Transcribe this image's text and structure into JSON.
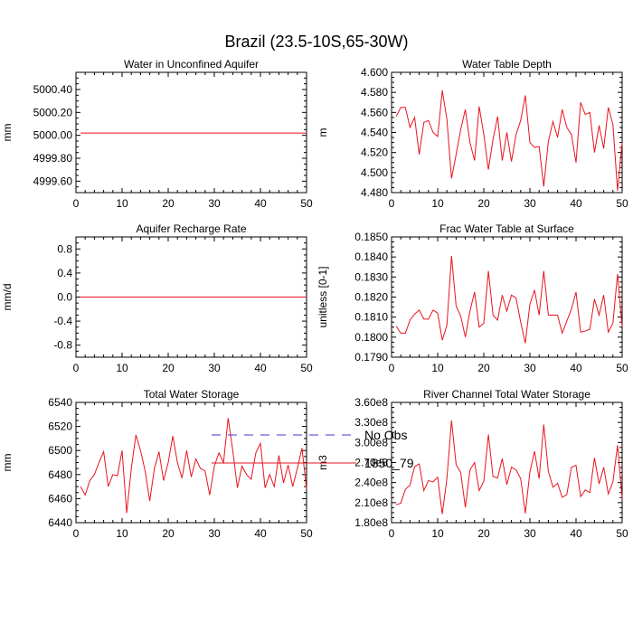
{
  "figure_title": "Brazil (23.5-10S,65-30W)",
  "legend": {
    "entries": [
      {
        "label": "No Obs",
        "color": "#3b3bd6",
        "style": "dashed"
      },
      {
        "label": "1850_79",
        "color": "#e8141e",
        "style": "solid"
      }
    ]
  },
  "chart_data": [
    {
      "type": "line",
      "title": "Water in Unconfined Aquifer",
      "ylabel": "mm",
      "xlabel": "",
      "xlim": [
        0,
        50
      ],
      "ylim": [
        4999.5,
        5000.55
      ],
      "xticks": [
        0,
        10,
        20,
        30,
        40,
        50
      ],
      "xtick_labels": [
        "0",
        "10",
        "20",
        "30",
        "40",
        "50"
      ],
      "yticks": [
        4999.6,
        4999.8,
        5000.0,
        5000.2,
        5000.4
      ],
      "ytick_labels": [
        "4999.60",
        "4999.80",
        "5000.00",
        "5000.20",
        "5000.40"
      ],
      "series": [
        {
          "name": "1850_79",
          "color": "#e8141e",
          "x": [
            1,
            2,
            3,
            4,
            5,
            6,
            7,
            8,
            9,
            10,
            11,
            12,
            13,
            14,
            15,
            16,
            17,
            18,
            19,
            20,
            21,
            22,
            23,
            24,
            25,
            26,
            27,
            28,
            29,
            30,
            31,
            32,
            33,
            34,
            35,
            36,
            37,
            38,
            39,
            40,
            41,
            42,
            43,
            44,
            45,
            46,
            47,
            48,
            49,
            50
          ],
          "values": [
            5000.02,
            5000.02,
            5000.02,
            5000.02,
            5000.02,
            5000.02,
            5000.02,
            5000.02,
            5000.02,
            5000.02,
            5000.02,
            5000.02,
            5000.02,
            5000.02,
            5000.02,
            5000.02,
            5000.02,
            5000.02,
            5000.02,
            5000.02,
            5000.02,
            5000.02,
            5000.02,
            5000.02,
            5000.02,
            5000.02,
            5000.02,
            5000.02,
            5000.02,
            5000.02,
            5000.02,
            5000.02,
            5000.02,
            5000.02,
            5000.02,
            5000.02,
            5000.02,
            5000.02,
            5000.02,
            5000.02,
            5000.02,
            5000.02,
            5000.02,
            5000.02,
            5000.02,
            5000.02,
            5000.02,
            5000.02,
            5000.02,
            5000.02
          ]
        }
      ]
    },
    {
      "type": "line",
      "title": "Water Table Depth",
      "ylabel": "m",
      "xlabel": "",
      "xlim": [
        0,
        50
      ],
      "ylim": [
        4.48,
        4.6
      ],
      "xticks": [
        0,
        10,
        20,
        30,
        40,
        50
      ],
      "xtick_labels": [
        "0",
        "10",
        "20",
        "30",
        "40",
        "50"
      ],
      "yticks": [
        4.48,
        4.5,
        4.52,
        4.54,
        4.56,
        4.58,
        4.6
      ],
      "ytick_labels": [
        "4.480",
        "4.500",
        "4.520",
        "4.540",
        "4.560",
        "4.580",
        "4.600"
      ],
      "series": [
        {
          "name": "1850_79",
          "color": "#e8141e",
          "x": [
            1,
            2,
            3,
            4,
            5,
            6,
            7,
            8,
            9,
            10,
            11,
            12,
            13,
            14,
            15,
            16,
            17,
            18,
            19,
            20,
            21,
            22,
            23,
            24,
            25,
            26,
            27,
            28,
            29,
            30,
            31,
            32,
            33,
            34,
            35,
            36,
            37,
            38,
            39,
            40,
            41,
            42,
            43,
            44,
            45,
            46,
            47,
            48,
            49,
            50
          ],
          "values": [
            4.556,
            4.565,
            4.565,
            4.545,
            4.555,
            4.518,
            4.55,
            4.552,
            4.54,
            4.536,
            4.582,
            4.553,
            4.494,
            4.518,
            4.543,
            4.563,
            4.53,
            4.512,
            4.566,
            4.538,
            4.503,
            4.533,
            4.556,
            4.512,
            4.54,
            4.511,
            4.538,
            4.552,
            4.577,
            4.53,
            4.525,
            4.526,
            4.486,
            4.531,
            4.551,
            4.535,
            4.563,
            4.545,
            4.538,
            4.51,
            4.57,
            4.558,
            4.56,
            4.52,
            4.547,
            4.524,
            4.565,
            4.548,
            4.482,
            4.53
          ]
        }
      ]
    },
    {
      "type": "line",
      "title": "Aquifer Recharge Rate",
      "ylabel": "mm/d",
      "xlabel": "",
      "xlim": [
        0,
        50
      ],
      "ylim": [
        -1.0,
        1.0
      ],
      "xticks": [
        0,
        10,
        20,
        30,
        40,
        50
      ],
      "xtick_labels": [
        "0",
        "10",
        "20",
        "30",
        "40",
        "50"
      ],
      "yticks": [
        -0.8,
        -0.4,
        0.0,
        0.4,
        0.8
      ],
      "ytick_labels": [
        "-0.8",
        "-0.4",
        "0.0",
        "0.4",
        "0.8"
      ],
      "series": [
        {
          "name": "1850_79",
          "color": "#e8141e",
          "x": [
            1,
            2,
            3,
            4,
            5,
            6,
            7,
            8,
            9,
            10,
            11,
            12,
            13,
            14,
            15,
            16,
            17,
            18,
            19,
            20,
            21,
            22,
            23,
            24,
            25,
            26,
            27,
            28,
            29,
            30,
            31,
            32,
            33,
            34,
            35,
            36,
            37,
            38,
            39,
            40,
            41,
            42,
            43,
            44,
            45,
            46,
            47,
            48,
            49,
            50
          ],
          "values": [
            0,
            0,
            0,
            0,
            0,
            0,
            0,
            0,
            0,
            0,
            0,
            0,
            0,
            0,
            0,
            0,
            0,
            0,
            0,
            0,
            0,
            0,
            0,
            0,
            0,
            0,
            0,
            0,
            0,
            0,
            0,
            0,
            0,
            0,
            0,
            0,
            0,
            0,
            0,
            0,
            0,
            0,
            0,
            0,
            0,
            0,
            0,
            0,
            0,
            0
          ]
        }
      ]
    },
    {
      "type": "line",
      "title": "Frac Water Table at Surface",
      "ylabel": "unitless [0-1]",
      "xlabel": "",
      "xlim": [
        0,
        50
      ],
      "ylim": [
        0.179,
        0.185
      ],
      "xticks": [
        0,
        10,
        20,
        30,
        40,
        50
      ],
      "xtick_labels": [
        "0",
        "10",
        "20",
        "30",
        "40",
        "50"
      ],
      "yticks": [
        0.179,
        0.18,
        0.181,
        0.182,
        0.183,
        0.184,
        0.185
      ],
      "ytick_labels": [
        "0.1790",
        "0.1800",
        "0.1810",
        "0.1820",
        "0.1830",
        "0.1840",
        "0.1850"
      ],
      "series": [
        {
          "name": "1850_79",
          "color": "#e8141e",
          "x": [
            1,
            2,
            3,
            4,
            5,
            6,
            7,
            8,
            9,
            10,
            11,
            12,
            13,
            14,
            15,
            16,
            17,
            18,
            19,
            20,
            21,
            22,
            23,
            24,
            25,
            26,
            27,
            28,
            29,
            30,
            31,
            32,
            33,
            34,
            35,
            36,
            37,
            38,
            39,
            40,
            41,
            42,
            43,
            44,
            45,
            46,
            47,
            48,
            49,
            50
          ],
          "values": [
            0.18055,
            0.1802,
            0.1802,
            0.18085,
            0.18115,
            0.18135,
            0.1809,
            0.1809,
            0.18135,
            0.1812,
            0.17985,
            0.1806,
            0.18405,
            0.18155,
            0.18105,
            0.18,
            0.1813,
            0.18225,
            0.1805,
            0.1807,
            0.1833,
            0.1811,
            0.18085,
            0.1821,
            0.1813,
            0.1821,
            0.18195,
            0.18075,
            0.1797,
            0.18165,
            0.18235,
            0.1811,
            0.1833,
            0.1811,
            0.1811,
            0.1811,
            0.1802,
            0.1808,
            0.1814,
            0.18225,
            0.18025,
            0.1803,
            0.1804,
            0.1819,
            0.1811,
            0.1821,
            0.18025,
            0.1807,
            0.18315,
            0.1805
          ]
        }
      ]
    },
    {
      "type": "line",
      "title": "Total Water Storage",
      "ylabel": "mm",
      "xlabel": "",
      "xlim": [
        0,
        50
      ],
      "ylim": [
        6440,
        6540
      ],
      "xticks": [
        0,
        10,
        20,
        30,
        40,
        50
      ],
      "xtick_labels": [
        "0",
        "10",
        "20",
        "30",
        "40",
        "50"
      ],
      "yticks": [
        6440,
        6460,
        6480,
        6500,
        6520,
        6540
      ],
      "ytick_labels": [
        "6440",
        "6460",
        "6480",
        "6500",
        "6520",
        "6540"
      ],
      "series": [
        {
          "name": "1850_79",
          "color": "#e8141e",
          "x": [
            1,
            2,
            3,
            4,
            5,
            6,
            7,
            8,
            9,
            10,
            11,
            12,
            13,
            14,
            15,
            16,
            17,
            18,
            19,
            20,
            21,
            22,
            23,
            24,
            25,
            26,
            27,
            28,
            29,
            30,
            31,
            32,
            33,
            34,
            35,
            36,
            37,
            38,
            39,
            40,
            41,
            42,
            43,
            44,
            45,
            46,
            47,
            48,
            49,
            50
          ],
          "values": [
            6470,
            6463,
            6475,
            6480,
            6490,
            6499,
            6470,
            6480,
            6479,
            6500,
            6448,
            6485,
            6513,
            6500,
            6483,
            6458,
            6485,
            6499,
            6475,
            6490,
            6512,
            6490,
            6477,
            6500,
            6478,
            6493,
            6485,
            6483,
            6463,
            6487,
            6498,
            6490,
            6527,
            6500,
            6469,
            6487,
            6480,
            6476,
            6498,
            6506,
            6469,
            6480,
            6470,
            6496,
            6473,
            6488,
            6470,
            6485,
            6502,
            6468
          ]
        }
      ]
    },
    {
      "type": "line",
      "title": "River Channel Total Water Storage",
      "ylabel": "m3",
      "xlabel": "",
      "xlim": [
        0,
        50
      ],
      "ylim": [
        180000000,
        360000000
      ],
      "xticks": [
        0,
        10,
        20,
        30,
        40,
        50
      ],
      "xtick_labels": [
        "0",
        "10",
        "20",
        "30",
        "40",
        "50"
      ],
      "yticks": [
        180000000,
        210000000,
        240000000,
        270000000,
        300000000,
        330000000,
        360000000
      ],
      "ytick_labels": [
        "1.80e8",
        "2.10e8",
        "2.40e8",
        "2.70e8",
        "3.00e8",
        "3.30e8",
        "3.60e8"
      ],
      "series": [
        {
          "name": "1850_79",
          "color": "#e8141e",
          "x": [
            1,
            2,
            3,
            4,
            5,
            6,
            7,
            8,
            9,
            10,
            11,
            12,
            13,
            14,
            15,
            16,
            17,
            18,
            19,
            20,
            21,
            22,
            23,
            24,
            25,
            26,
            27,
            28,
            29,
            30,
            31,
            32,
            33,
            34,
            35,
            36,
            37,
            38,
            39,
            40,
            41,
            42,
            43,
            44,
            45,
            46,
            47,
            48,
            49,
            50
          ],
          "values": [
            207000000,
            209000000,
            230000000,
            236000000,
            264000000,
            268000000,
            228000000,
            243000000,
            241000000,
            248000000,
            193000000,
            246000000,
            333000000,
            267000000,
            255000000,
            203000000,
            259000000,
            270000000,
            228000000,
            242000000,
            312000000,
            249000000,
            247000000,
            276000000,
            237000000,
            263000000,
            259000000,
            246000000,
            194000000,
            256000000,
            287000000,
            246000000,
            327000000,
            257000000,
            233000000,
            239000000,
            218000000,
            222000000,
            263000000,
            266000000,
            219000000,
            229000000,
            225000000,
            277000000,
            238000000,
            263000000,
            223000000,
            241000000,
            296000000,
            216000000
          ]
        }
      ]
    }
  ]
}
